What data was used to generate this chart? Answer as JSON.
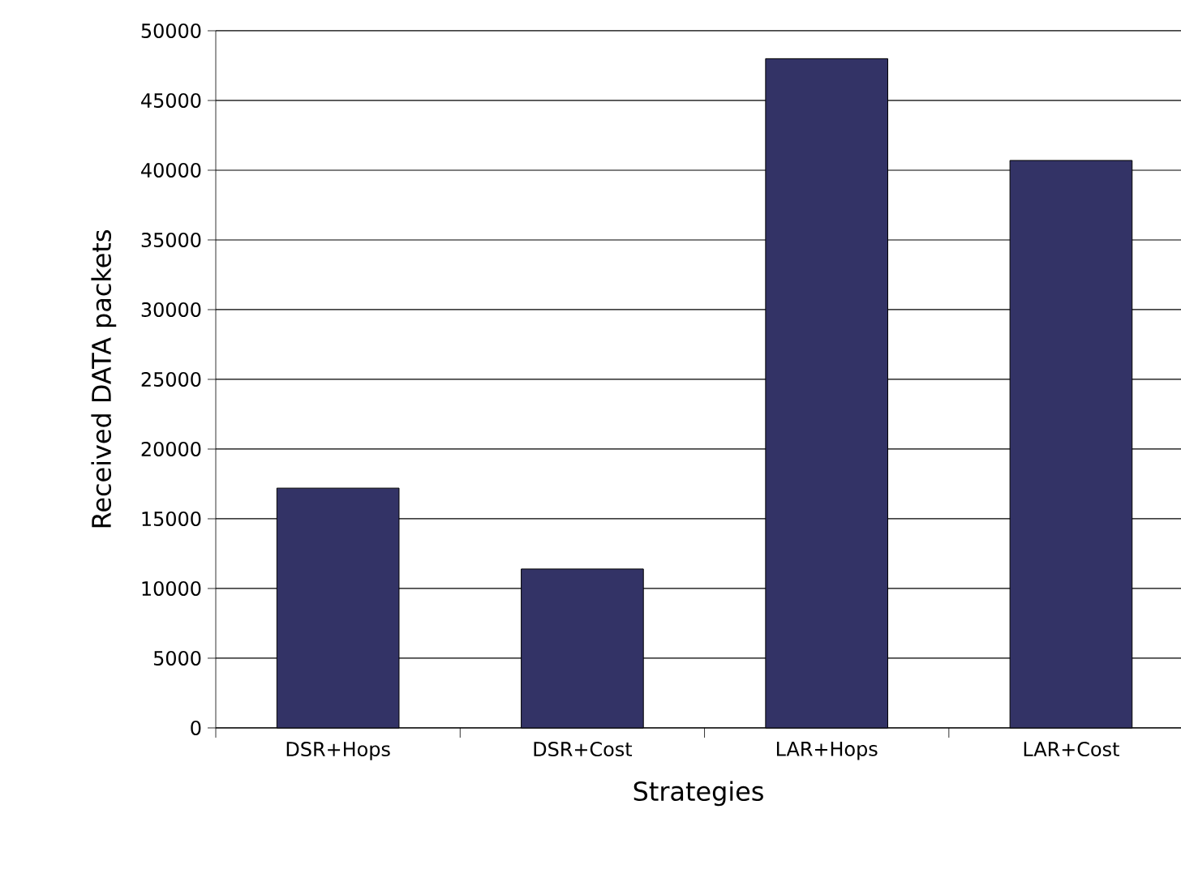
{
  "chart_data": {
    "type": "bar",
    "xlabel": "Strategies",
    "ylabel": "Received DATA packets",
    "categories": [
      "DSR+Hops",
      "DSR+Cost",
      "LAR+Hops",
      "LAR+Cost"
    ],
    "values": [
      17200,
      11400,
      48000,
      40700
    ],
    "color": "#333366",
    "ylim": [
      0,
      50000
    ],
    "yticks": [
      0,
      5000,
      10000,
      15000,
      20000,
      25000,
      30000,
      35000,
      40000,
      45000,
      50000
    ],
    "grid": "y"
  }
}
